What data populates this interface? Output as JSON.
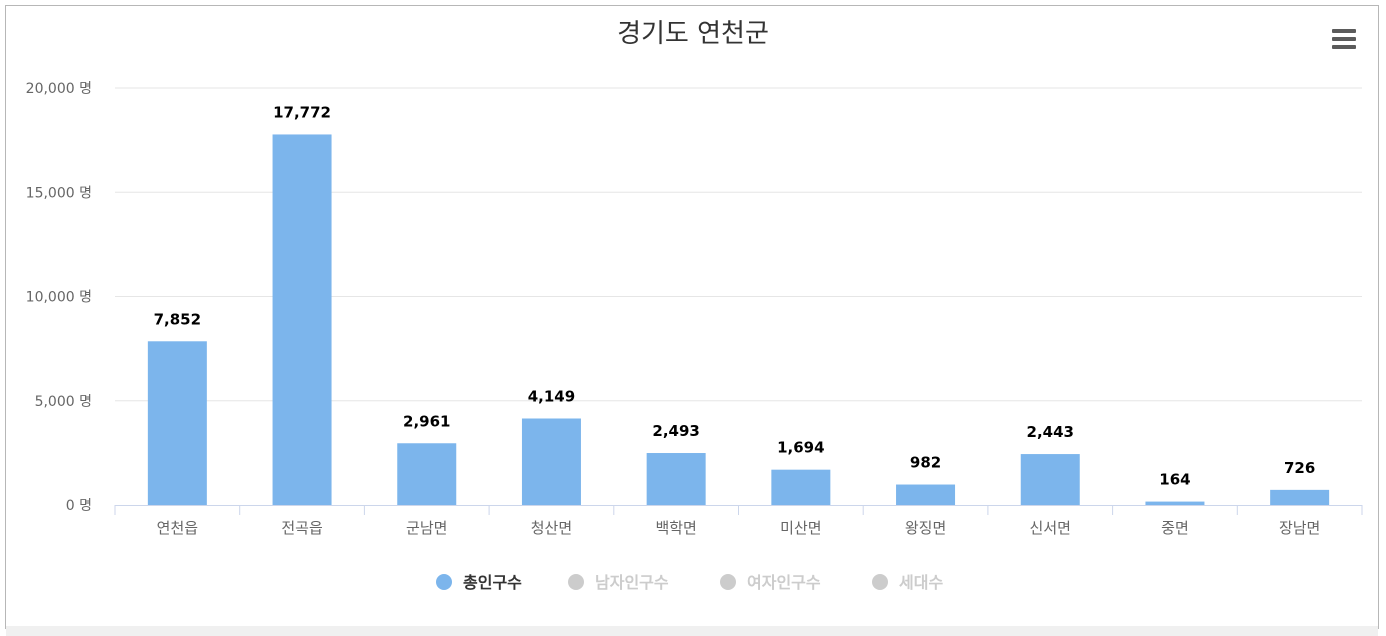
{
  "chart_data": {
    "type": "bar",
    "title": "경기도 연천군",
    "categories": [
      "연천읍",
      "전곡읍",
      "군남면",
      "청산면",
      "백학면",
      "미산면",
      "왕징면",
      "신서면",
      "중면",
      "장남면"
    ],
    "series": [
      {
        "name": "총인구수",
        "visible": true,
        "color": "#7cb5ec",
        "values": [
          7852,
          17772,
          2961,
          4149,
          2493,
          1694,
          982,
          2443,
          164,
          726
        ],
        "labels": [
          "7,852",
          "17,772",
          "2,961",
          "4,149",
          "2,493",
          "1,694",
          "982",
          "2,443",
          "164",
          "726"
        ]
      },
      {
        "name": "남자인구수",
        "visible": false,
        "color": "#cccccc"
      },
      {
        "name": "여자인구수",
        "visible": false,
        "color": "#cccccc"
      },
      {
        "name": "세대수",
        "visible": false,
        "color": "#cccccc"
      }
    ],
    "ylim": [
      0,
      20000
    ],
    "yticks": [
      0,
      5000,
      10000,
      15000,
      20000
    ],
    "ytick_labels": [
      "0 명",
      "5,000 명",
      "10,000 명",
      "15,000 명",
      "20,000 명"
    ],
    "grid": true,
    "legend_position": "bottom-center",
    "colors": {
      "bar": "#7cb5ec",
      "hidden_series": "#cccccc",
      "grid": "#e6e6e6",
      "axis": "#ccd6eb"
    }
  },
  "ui": {
    "menu_icon": "hamburger-menu-icon"
  }
}
